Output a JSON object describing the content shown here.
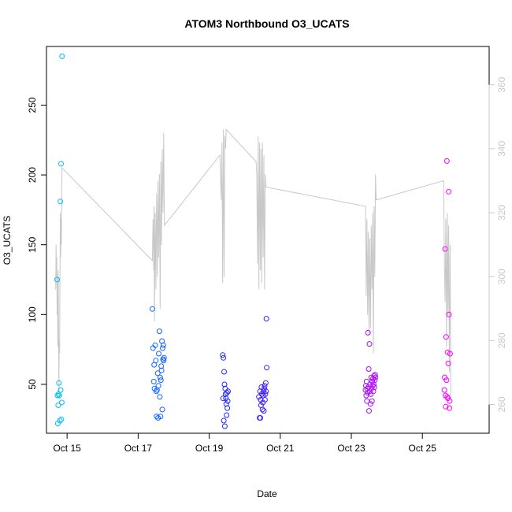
{
  "chart_data": {
    "type": "scatter",
    "title": "ATOM3 Northbound O3_UCATS",
    "xlabel": "Date",
    "ylabel": "O3_UCATS",
    "x_unit": "days",
    "x_ticks": [
      {
        "value": 14.0,
        "label": "Oct 15"
      },
      {
        "value": 16.0,
        "label": "Oct 17"
      },
      {
        "value": 18.0,
        "label": "Oct 19"
      },
      {
        "value": 20.0,
        "label": "Oct 21"
      },
      {
        "value": 22.0,
        "label": "Oct 23"
      },
      {
        "value": 24.0,
        "label": "Oct 25"
      }
    ],
    "xlim": [
      13.42,
      25.88
    ],
    "ylim": [
      15,
      292
    ],
    "y_ticks": [
      50,
      100,
      150,
      200,
      250
    ],
    "y2lim": [
      251,
      372
    ],
    "y2_ticks": [
      260,
      280,
      300,
      320,
      340,
      360
    ],
    "secondary_color": "#c8c8c8",
    "colors": {
      "start": "#00bfff",
      "mid": "#2020ff",
      "end": "#ff00ff"
    },
    "points": [
      {
        "x": 13.72,
        "y": 125
      },
      {
        "x": 13.73,
        "y": 42
      },
      {
        "x": 13.74,
        "y": 22
      },
      {
        "x": 13.75,
        "y": 35
      },
      {
        "x": 13.76,
        "y": 43
      },
      {
        "x": 13.77,
        "y": 51
      },
      {
        "x": 13.78,
        "y": 42
      },
      {
        "x": 13.8,
        "y": 24
      },
      {
        "x": 13.81,
        "y": 181
      },
      {
        "x": 13.82,
        "y": 46
      },
      {
        "x": 13.83,
        "y": 208
      },
      {
        "x": 13.84,
        "y": 25
      },
      {
        "x": 13.85,
        "y": 37
      },
      {
        "x": 13.86,
        "y": 285
      },
      {
        "x": 16.4,
        "y": 104
      },
      {
        "x": 16.42,
        "y": 76
      },
      {
        "x": 16.44,
        "y": 52
      },
      {
        "x": 16.45,
        "y": 64
      },
      {
        "x": 16.46,
        "y": 47
      },
      {
        "x": 16.48,
        "y": 78
      },
      {
        "x": 16.5,
        "y": 67
      },
      {
        "x": 16.51,
        "y": 45
      },
      {
        "x": 16.52,
        "y": 27
      },
      {
        "x": 16.53,
        "y": 46
      },
      {
        "x": 16.55,
        "y": 58
      },
      {
        "x": 16.56,
        "y": 26
      },
      {
        "x": 16.57,
        "y": 49
      },
      {
        "x": 16.58,
        "y": 72
      },
      {
        "x": 16.6,
        "y": 88
      },
      {
        "x": 16.61,
        "y": 41
      },
      {
        "x": 16.62,
        "y": 55
      },
      {
        "x": 16.63,
        "y": 27
      },
      {
        "x": 16.64,
        "y": 53
      },
      {
        "x": 16.65,
        "y": 63
      },
      {
        "x": 16.66,
        "y": 60
      },
      {
        "x": 16.67,
        "y": 81
      },
      {
        "x": 16.68,
        "y": 32
      },
      {
        "x": 16.69,
        "y": 76
      },
      {
        "x": 16.7,
        "y": 68
      },
      {
        "x": 16.71,
        "y": 78
      },
      {
        "x": 16.72,
        "y": 67
      },
      {
        "x": 16.73,
        "y": 69
      },
      {
        "x": 18.38,
        "y": 71
      },
      {
        "x": 18.39,
        "y": 40
      },
      {
        "x": 18.4,
        "y": 69
      },
      {
        "x": 18.41,
        "y": 24
      },
      {
        "x": 18.42,
        "y": 59
      },
      {
        "x": 18.43,
        "y": 50
      },
      {
        "x": 18.44,
        "y": 20
      },
      {
        "x": 18.45,
        "y": 47
      },
      {
        "x": 18.46,
        "y": 43
      },
      {
        "x": 18.47,
        "y": 40
      },
      {
        "x": 18.48,
        "y": 36
      },
      {
        "x": 18.49,
        "y": 28
      },
      {
        "x": 18.5,
        "y": 44
      },
      {
        "x": 18.51,
        "y": 33
      },
      {
        "x": 18.52,
        "y": 38
      },
      {
        "x": 18.53,
        "y": 45
      },
      {
        "x": 19.4,
        "y": 41
      },
      {
        "x": 19.42,
        "y": 26
      },
      {
        "x": 19.43,
        "y": 45
      },
      {
        "x": 19.44,
        "y": 26
      },
      {
        "x": 19.45,
        "y": 39
      },
      {
        "x": 19.46,
        "y": 35
      },
      {
        "x": 19.47,
        "y": 48
      },
      {
        "x": 19.48,
        "y": 43
      },
      {
        "x": 19.5,
        "y": 32
      },
      {
        "x": 19.51,
        "y": 37
      },
      {
        "x": 19.52,
        "y": 42
      },
      {
        "x": 19.53,
        "y": 45
      },
      {
        "x": 19.54,
        "y": 31
      },
      {
        "x": 19.55,
        "y": 47
      },
      {
        "x": 19.56,
        "y": 49
      },
      {
        "x": 19.57,
        "y": 39
      },
      {
        "x": 19.58,
        "y": 43
      },
      {
        "x": 19.59,
        "y": 51
      },
      {
        "x": 19.6,
        "y": 45
      },
      {
        "x": 19.61,
        "y": 97
      },
      {
        "x": 19.62,
        "y": 62
      },
      {
        "x": 22.4,
        "y": 46
      },
      {
        "x": 22.41,
        "y": 49
      },
      {
        "x": 22.42,
        "y": 42
      },
      {
        "x": 22.43,
        "y": 52
      },
      {
        "x": 22.44,
        "y": 38
      },
      {
        "x": 22.45,
        "y": 47
      },
      {
        "x": 22.46,
        "y": 44
      },
      {
        "x": 22.47,
        "y": 87
      },
      {
        "x": 22.48,
        "y": 48
      },
      {
        "x": 22.49,
        "y": 61
      },
      {
        "x": 22.5,
        "y": 31
      },
      {
        "x": 22.51,
        "y": 79
      },
      {
        "x": 22.52,
        "y": 45
      },
      {
        "x": 22.53,
        "y": 50
      },
      {
        "x": 22.54,
        "y": 36
      },
      {
        "x": 22.55,
        "y": 43
      },
      {
        "x": 22.56,
        "y": 55
      },
      {
        "x": 22.57,
        "y": 47
      },
      {
        "x": 22.58,
        "y": 38
      },
      {
        "x": 22.59,
        "y": 52
      },
      {
        "x": 22.6,
        "y": 49
      },
      {
        "x": 22.61,
        "y": 54
      },
      {
        "x": 22.62,
        "y": 45
      },
      {
        "x": 22.63,
        "y": 50
      },
      {
        "x": 22.64,
        "y": 56
      },
      {
        "x": 22.65,
        "y": 48
      },
      {
        "x": 22.66,
        "y": 53
      },
      {
        "x": 22.67,
        "y": 57
      },
      {
        "x": 22.68,
        "y": 55
      },
      {
        "x": 24.62,
        "y": 46
      },
      {
        "x": 24.63,
        "y": 55
      },
      {
        "x": 24.64,
        "y": 147
      },
      {
        "x": 24.65,
        "y": 42
      },
      {
        "x": 24.66,
        "y": 34
      },
      {
        "x": 24.67,
        "y": 84
      },
      {
        "x": 24.68,
        "y": 53
      },
      {
        "x": 24.69,
        "y": 210
      },
      {
        "x": 24.7,
        "y": 41
      },
      {
        "x": 24.71,
        "y": 73
      },
      {
        "x": 24.72,
        "y": 40
      },
      {
        "x": 24.73,
        "y": 65
      },
      {
        "x": 24.74,
        "y": 188
      },
      {
        "x": 24.75,
        "y": 100
      },
      {
        "x": 24.76,
        "y": 33
      },
      {
        "x": 24.77,
        "y": 38
      },
      {
        "x": 24.78,
        "y": 72
      }
    ],
    "secondary_series": [
      [
        13.68,
        296
      ],
      [
        13.69,
        310
      ],
      [
        13.7,
        300
      ],
      [
        13.71,
        306
      ],
      [
        13.72,
        288
      ],
      [
        13.73,
        300
      ],
      [
        13.74,
        278
      ],
      [
        13.75,
        302
      ],
      [
        13.76,
        286
      ],
      [
        13.77,
        264
      ],
      [
        13.78,
        280
      ],
      [
        13.79,
        276
      ],
      [
        13.8,
        300
      ],
      [
        13.81,
        320
      ],
      [
        13.82,
        306
      ],
      [
        13.83,
        318
      ],
      [
        13.84,
        310
      ],
      [
        13.85,
        330
      ],
      [
        13.86,
        334
      ],
      [
        16.4,
        305
      ],
      [
        16.42,
        318
      ],
      [
        16.44,
        302
      ],
      [
        16.45,
        322
      ],
      [
        16.46,
        286
      ],
      [
        16.48,
        320
      ],
      [
        16.5,
        296
      ],
      [
        16.52,
        326
      ],
      [
        16.54,
        300
      ],
      [
        16.56,
        330
      ],
      [
        16.58,
        306
      ],
      [
        16.6,
        332
      ],
      [
        16.62,
        290
      ],
      [
        16.64,
        336
      ],
      [
        16.66,
        310
      ],
      [
        16.68,
        340
      ],
      [
        16.7,
        320
      ],
      [
        16.72,
        345
      ],
      [
        16.74,
        316
      ],
      [
        18.3,
        338
      ],
      [
        18.34,
        324
      ],
      [
        18.36,
        342
      ],
      [
        18.38,
        298
      ],
      [
        18.4,
        346
      ],
      [
        18.42,
        300
      ],
      [
        18.44,
        344
      ],
      [
        18.46,
        340
      ],
      [
        18.48,
        346
      ],
      [
        19.32,
        336
      ],
      [
        19.34,
        332
      ],
      [
        19.36,
        304
      ],
      [
        19.38,
        344
      ],
      [
        19.4,
        296
      ],
      [
        19.42,
        342
      ],
      [
        19.44,
        302
      ],
      [
        19.46,
        340
      ],
      [
        19.48,
        298
      ],
      [
        19.5,
        342
      ],
      [
        19.52,
        306
      ],
      [
        19.54,
        338
      ],
      [
        19.56,
        296
      ],
      [
        19.58,
        332
      ],
      [
        19.6,
        328
      ],
      [
        22.4,
        322
      ],
      [
        22.42,
        294
      ],
      [
        22.44,
        318
      ],
      [
        22.46,
        288
      ],
      [
        22.48,
        314
      ],
      [
        22.5,
        282
      ],
      [
        22.52,
        312
      ],
      [
        22.54,
        284
      ],
      [
        22.56,
        316
      ],
      [
        22.58,
        296
      ],
      [
        22.6,
        320
      ],
      [
        22.62,
        276
      ],
      [
        22.64,
        322
      ],
      [
        22.66,
        300
      ],
      [
        22.68,
        332
      ],
      [
        22.7,
        324
      ],
      [
        24.6,
        330
      ],
      [
        24.62,
        304
      ],
      [
        24.64,
        292
      ],
      [
        24.66,
        318
      ],
      [
        24.68,
        278
      ],
      [
        24.7,
        320
      ],
      [
        24.72,
        288
      ],
      [
        24.74,
        316
      ],
      [
        24.76,
        270
      ],
      [
        24.78,
        310
      ],
      [
        24.8,
        262
      ]
    ]
  }
}
